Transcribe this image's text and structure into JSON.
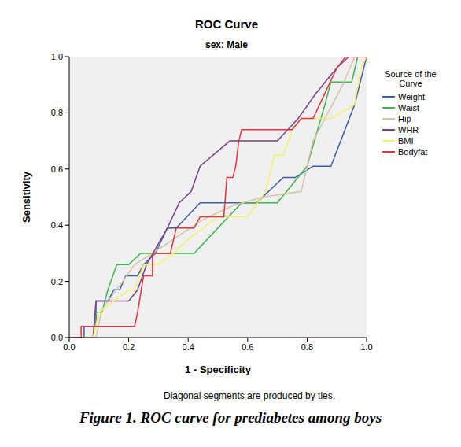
{
  "chart_data": {
    "type": "line",
    "title": "ROC Curve",
    "subtitle": "sex: Male",
    "x_label": "1 - Specificity",
    "y_label": "Sensitivity",
    "legend_title": "Source of the Curve",
    "footnote": "Diagonal segments are produced by ties.",
    "caption": "Figure 1. ROC curve for prediabetes among boys",
    "xlim": [
      0,
      1
    ],
    "ylim": [
      0,
      1
    ],
    "xticks": [
      {
        "value": 0,
        "label": "0.0"
      },
      0.2,
      0.4,
      0.6,
      0.8,
      {
        "value": 1,
        "label": "1.0"
      }
    ],
    "yticks": [
      {
        "value": 0,
        "label": "0.0"
      },
      0.2,
      0.4,
      0.6,
      0.8,
      {
        "value": 1,
        "label": "1.0"
      }
    ],
    "grid": false,
    "legend": "right",
    "series": [
      {
        "name": "Weight",
        "color": "#3c5ea8",
        "x": [
          0,
          0.05,
          0.05,
          0.09,
          0.09,
          0.13,
          0.15,
          0.17,
          0.19,
          0.23,
          0.25,
          0.29,
          0.33,
          0.36,
          0.44,
          0.58,
          0.63,
          0.72,
          0.76,
          0.82,
          0.88,
          0.96,
          1
        ],
        "values": [
          0,
          0,
          0.04,
          0.04,
          0.13,
          0.13,
          0.17,
          0.17,
          0.22,
          0.22,
          0.26,
          0.3,
          0.39,
          0.39,
          0.48,
          0.48,
          0.48,
          0.57,
          0.57,
          0.61,
          0.61,
          0.83,
          1
        ]
      },
      {
        "name": "Waist",
        "color": "#39b54a",
        "x": [
          0,
          0.08,
          0.09,
          0.11,
          0.13,
          0.16,
          0.2,
          0.24,
          0.42,
          0.5,
          0.58,
          0.7,
          0.8,
          0.86,
          0.88,
          0.95,
          0.97,
          1
        ],
        "values": [
          0,
          0,
          0.09,
          0.09,
          0.17,
          0.26,
          0.26,
          0.3,
          0.3,
          0.39,
          0.48,
          0.48,
          0.61,
          0.83,
          0.91,
          0.91,
          1,
          1
        ]
      },
      {
        "name": "Hip",
        "color": "#d2c4a4",
        "x": [
          0,
          0.09,
          0.11,
          0.18,
          0.22,
          0.28,
          0.35,
          0.45,
          0.55,
          0.65,
          0.78,
          0.82,
          0.86,
          0.92,
          0.96,
          1
        ],
        "values": [
          0,
          0,
          0.1,
          0.2,
          0.26,
          0.3,
          0.35,
          0.42,
          0.47,
          0.5,
          0.52,
          0.7,
          0.78,
          0.9,
          1,
          1
        ]
      },
      {
        "name": "WHR",
        "color": "#7b3f8c",
        "x": [
          0,
          0.08,
          0.09,
          0.2,
          0.23,
          0.26,
          0.33,
          0.37,
          0.41,
          0.44,
          0.54,
          0.7,
          0.77,
          0.83,
          0.9,
          0.94,
          1
        ],
        "values": [
          0,
          0,
          0.13,
          0.13,
          0.17,
          0.26,
          0.39,
          0.48,
          0.52,
          0.61,
          0.7,
          0.7,
          0.78,
          0.87,
          0.96,
          1,
          1
        ]
      },
      {
        "name": "BMI",
        "color": "#f5f06a",
        "x": [
          0,
          0.08,
          0.1,
          0.15,
          0.2,
          0.22,
          0.25,
          0.3,
          0.35,
          0.4,
          0.5,
          0.6,
          0.66,
          0.69,
          0.72,
          0.75,
          0.78,
          0.88,
          0.96,
          0.98,
          1
        ],
        "values": [
          0,
          0,
          0.09,
          0.13,
          0.17,
          0.17,
          0.26,
          0.26,
          0.3,
          0.35,
          0.43,
          0.43,
          0.52,
          0.65,
          0.65,
          0.74,
          0.78,
          0.78,
          0.83,
          0.96,
          1
        ]
      },
      {
        "name": "Bodyfat",
        "color": "#e8323a",
        "x": [
          0,
          0.04,
          0.04,
          0.22,
          0.23,
          0.25,
          0.28,
          0.28,
          0.34,
          0.36,
          0.42,
          0.44,
          0.52,
          0.53,
          0.55,
          0.56,
          0.57,
          0.58,
          0.75,
          0.78,
          0.82,
          0.86,
          0.9,
          0.93,
          1
        ],
        "values": [
          0,
          0,
          0.04,
          0.04,
          0.09,
          0.22,
          0.22,
          0.3,
          0.3,
          0.39,
          0.39,
          0.43,
          0.43,
          0.57,
          0.57,
          0.61,
          0.7,
          0.74,
          0.74,
          0.78,
          0.78,
          0.87,
          0.96,
          1,
          1
        ]
      }
    ]
  }
}
